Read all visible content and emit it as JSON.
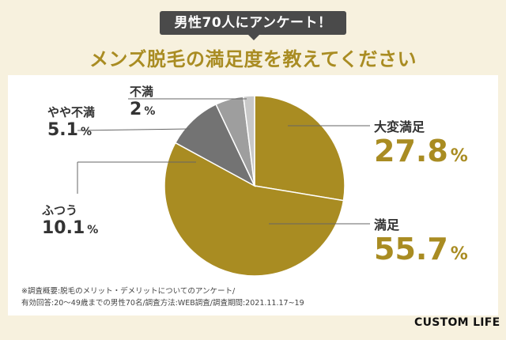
{
  "header": {
    "badge": "男性70人にアンケート！",
    "title": "メンズ脱毛の満足度を教えてください"
  },
  "chart_data": {
    "type": "pie",
    "slices": [
      {
        "label": "大変満足",
        "value": 27.8,
        "display": "27.8",
        "unit": "%",
        "color": "#a98c22"
      },
      {
        "label": "満足",
        "value": 55.7,
        "display": "55.7",
        "unit": "%",
        "color": "#a98c22"
      },
      {
        "label": "ふつう",
        "value": 10.1,
        "display": "10.1",
        "unit": "%",
        "color": "#737373"
      },
      {
        "label": "やや不満",
        "value": 5.1,
        "display": "5.1",
        "unit": "%",
        "color": "#9e9e9e"
      },
      {
        "label": "不満",
        "value": 2,
        "display": "2",
        "unit": "%",
        "color": "#c8c8c8"
      }
    ]
  },
  "footnote": {
    "line1": "※調査概要:脱毛のメリット・デメリットについてのアンケート/",
    "line2": "有効回答:20～49歳までの男性70名/調査方法:WEB調査/調査期間:2021.11.17~19"
  },
  "brand": "CUSTOM LIFE"
}
